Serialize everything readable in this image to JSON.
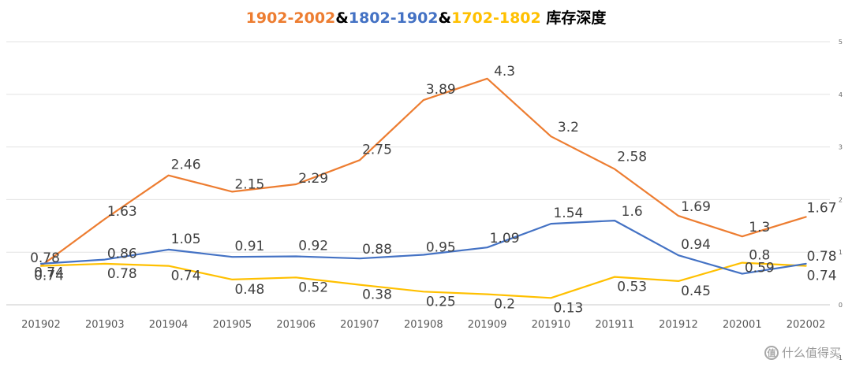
{
  "chart_data": {
    "type": "line",
    "title": "1902-2002&1802-1902&1702-1802 库存深度",
    "title_parts": [
      {
        "text": "1902-2002",
        "color": "#ED7D31"
      },
      {
        "text": "&",
        "color": "#000000"
      },
      {
        "text": "1802-1902",
        "color": "#4472C4"
      },
      {
        "text": "&",
        "color": "#000000"
      },
      {
        "text": "1702-1802",
        "color": "#FFC000"
      },
      {
        "text": " 库存深度",
        "color": "#000000"
      }
    ],
    "categories": [
      "201902",
      "201903",
      "201904",
      "201905",
      "201906",
      "201907",
      "201908",
      "201909",
      "201910",
      "201911",
      "201912",
      "202001",
      "202002"
    ],
    "series": [
      {
        "color": "#ED7D31",
        "values": [
          0.74,
          1.63,
          2.46,
          2.15,
          2.29,
          2.75,
          3.89,
          4.3,
          3.2,
          2.58,
          1.69,
          1.3,
          1.67
        ],
        "labels": [
          "0.74",
          "1.63",
          "2.46",
          "2.15",
          "2.29",
          "2.75",
          "3.89",
          "4.3",
          "3.2",
          "2.58",
          "1.69",
          "1.3",
          "1.67"
        ]
      },
      {
        "color": "#4472C4",
        "values": [
          0.78,
          0.86,
          1.05,
          0.91,
          0.92,
          0.88,
          0.95,
          1.09,
          1.54,
          1.6,
          0.94,
          0.59,
          0.78
        ],
        "labels": [
          "0.78",
          "0.86",
          "1.05",
          "0.91",
          "0.92",
          "0.88",
          "0.95",
          "1.09",
          "1.54",
          "1.6",
          "0.94",
          "0.59",
          "0.78"
        ]
      },
      {
        "color": "#FFC000",
        "values": [
          0.74,
          0.78,
          0.74,
          0.48,
          0.52,
          0.38,
          0.25,
          0.2,
          0.13,
          0.53,
          0.45,
          0.8,
          0.74
        ],
        "labels": [
          "0.74",
          "0.78",
          "0.74",
          "0.48",
          "0.52",
          "0.38",
          "0.25",
          "0.2",
          "0.13",
          "0.53",
          "0.45",
          "0.8",
          "0.74"
        ]
      }
    ],
    "yaxis": {
      "position": "right",
      "ticks": [
        "5",
        "4",
        "3",
        "2",
        "1",
        "0",
        "-1"
      ]
    },
    "ylim": [
      -1,
      5
    ],
    "grid": true,
    "legend": "none"
  },
  "watermark": {
    "icon": "zhi-icon",
    "icon_glyph": "值",
    "text": "什么值得买"
  }
}
